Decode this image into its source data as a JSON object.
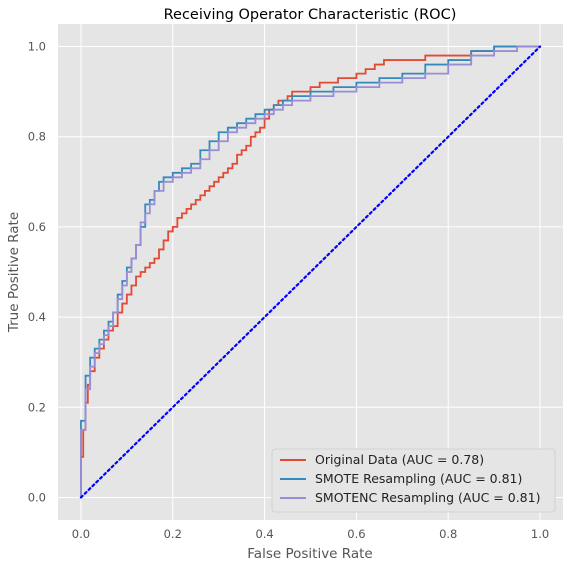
{
  "chart_data": {
    "type": "line",
    "title": "Receiving Operator Characteristic (ROC)",
    "xlabel": "False Positive Rate",
    "ylabel": "True Positive Rate",
    "xlim": [
      -0.05,
      1.05
    ],
    "ylim": [
      -0.05,
      1.05
    ],
    "xticks": [
      "0.0",
      "0.2",
      "0.4",
      "0.6",
      "0.8",
      "1.0"
    ],
    "yticks": [
      "0.0",
      "0.2",
      "0.4",
      "0.6",
      "0.8",
      "1.0"
    ],
    "grid": true,
    "legend_position": "lower-right",
    "series": [
      {
        "name": "Original Data (AUC = 0.78)",
        "color": "#E24A33",
        "x": [
          0.0,
          0.0,
          0.005,
          0.005,
          0.01,
          0.01,
          0.015,
          0.015,
          0.02,
          0.02,
          0.03,
          0.03,
          0.04,
          0.04,
          0.05,
          0.05,
          0.06,
          0.06,
          0.07,
          0.07,
          0.08,
          0.08,
          0.09,
          0.09,
          0.1,
          0.1,
          0.11,
          0.11,
          0.12,
          0.12,
          0.13,
          0.13,
          0.14,
          0.14,
          0.15,
          0.15,
          0.16,
          0.16,
          0.17,
          0.17,
          0.18,
          0.18,
          0.19,
          0.19,
          0.2,
          0.2,
          0.21,
          0.21,
          0.22,
          0.22,
          0.23,
          0.23,
          0.24,
          0.24,
          0.25,
          0.25,
          0.26,
          0.26,
          0.27,
          0.27,
          0.28,
          0.28,
          0.29,
          0.29,
          0.3,
          0.3,
          0.31,
          0.31,
          0.32,
          0.32,
          0.33,
          0.33,
          0.34,
          0.34,
          0.35,
          0.35,
          0.36,
          0.36,
          0.37,
          0.37,
          0.38,
          0.38,
          0.39,
          0.39,
          0.4,
          0.4,
          0.41,
          0.41,
          0.42,
          0.42,
          0.43,
          0.43,
          0.44,
          0.44,
          0.45,
          0.45,
          0.46,
          0.46,
          0.48,
          0.48,
          0.5,
          0.5,
          0.52,
          0.52,
          0.54,
          0.54,
          0.56,
          0.56,
          0.58,
          0.58,
          0.6,
          0.6,
          0.62,
          0.62,
          0.64,
          0.64,
          0.66,
          0.66,
          0.7,
          0.7,
          0.75,
          0.75,
          0.8,
          0.8,
          0.85,
          0.85,
          0.9,
          0.9,
          0.95,
          0.95,
          1.0
        ],
        "y": [
          0.0,
          0.09,
          0.09,
          0.15,
          0.15,
          0.21,
          0.21,
          0.25,
          0.25,
          0.28,
          0.28,
          0.31,
          0.31,
          0.33,
          0.33,
          0.35,
          0.35,
          0.37,
          0.37,
          0.38,
          0.38,
          0.41,
          0.41,
          0.43,
          0.43,
          0.45,
          0.45,
          0.47,
          0.47,
          0.49,
          0.49,
          0.5,
          0.5,
          0.51,
          0.51,
          0.52,
          0.52,
          0.53,
          0.53,
          0.55,
          0.55,
          0.57,
          0.57,
          0.59,
          0.59,
          0.6,
          0.6,
          0.62,
          0.62,
          0.63,
          0.63,
          0.64,
          0.64,
          0.65,
          0.65,
          0.66,
          0.66,
          0.67,
          0.67,
          0.68,
          0.68,
          0.69,
          0.69,
          0.7,
          0.7,
          0.71,
          0.71,
          0.72,
          0.72,
          0.73,
          0.73,
          0.74,
          0.74,
          0.76,
          0.76,
          0.77,
          0.77,
          0.78,
          0.78,
          0.8,
          0.8,
          0.81,
          0.81,
          0.82,
          0.82,
          0.84,
          0.84,
          0.86,
          0.86,
          0.87,
          0.87,
          0.88,
          0.88,
          0.88,
          0.88,
          0.89,
          0.89,
          0.9,
          0.9,
          0.9,
          0.9,
          0.91,
          0.91,
          0.92,
          0.92,
          0.92,
          0.92,
          0.93,
          0.93,
          0.93,
          0.93,
          0.94,
          0.94,
          0.95,
          0.95,
          0.96,
          0.96,
          0.97,
          0.97,
          0.97,
          0.97,
          0.98,
          0.98,
          0.98,
          0.98,
          0.99,
          0.99,
          1.0,
          1.0,
          1.0,
          1.0
        ]
      },
      {
        "name": "SMOTE Resampling (AUC = 0.81)",
        "color": "#348ABD",
        "x": [
          0.0,
          0.0,
          0.01,
          0.01,
          0.02,
          0.02,
          0.03,
          0.03,
          0.04,
          0.04,
          0.05,
          0.05,
          0.06,
          0.06,
          0.07,
          0.07,
          0.08,
          0.08,
          0.09,
          0.09,
          0.1,
          0.1,
          0.11,
          0.11,
          0.12,
          0.12,
          0.13,
          0.13,
          0.14,
          0.14,
          0.15,
          0.15,
          0.16,
          0.16,
          0.17,
          0.17,
          0.18,
          0.18,
          0.2,
          0.2,
          0.22,
          0.22,
          0.24,
          0.24,
          0.26,
          0.26,
          0.28,
          0.28,
          0.3,
          0.3,
          0.32,
          0.32,
          0.34,
          0.34,
          0.36,
          0.36,
          0.38,
          0.38,
          0.4,
          0.4,
          0.42,
          0.42,
          0.44,
          0.44,
          0.46,
          0.46,
          0.5,
          0.5,
          0.55,
          0.55,
          0.6,
          0.6,
          0.65,
          0.65,
          0.7,
          0.7,
          0.75,
          0.75,
          0.8,
          0.8,
          0.85,
          0.85,
          0.9,
          0.9,
          0.95,
          0.95,
          1.0
        ],
        "y": [
          0.0,
          0.17,
          0.17,
          0.27,
          0.27,
          0.31,
          0.31,
          0.33,
          0.33,
          0.35,
          0.35,
          0.37,
          0.37,
          0.39,
          0.39,
          0.41,
          0.41,
          0.45,
          0.45,
          0.48,
          0.48,
          0.51,
          0.51,
          0.53,
          0.53,
          0.56,
          0.56,
          0.6,
          0.6,
          0.65,
          0.65,
          0.66,
          0.66,
          0.68,
          0.68,
          0.7,
          0.7,
          0.71,
          0.71,
          0.72,
          0.72,
          0.73,
          0.73,
          0.74,
          0.74,
          0.77,
          0.77,
          0.79,
          0.79,
          0.81,
          0.81,
          0.82,
          0.82,
          0.83,
          0.83,
          0.84,
          0.84,
          0.85,
          0.85,
          0.86,
          0.86,
          0.87,
          0.87,
          0.88,
          0.88,
          0.89,
          0.89,
          0.9,
          0.9,
          0.91,
          0.91,
          0.92,
          0.92,
          0.93,
          0.93,
          0.94,
          0.94,
          0.96,
          0.96,
          0.97,
          0.97,
          0.99,
          0.99,
          1.0,
          1.0,
          1.0,
          1.0
        ]
      },
      {
        "name": "SMOTENC Resampling (AUC = 0.81)",
        "color": "#988ED5",
        "x": [
          0.0,
          0.0,
          0.01,
          0.01,
          0.02,
          0.02,
          0.03,
          0.03,
          0.04,
          0.04,
          0.05,
          0.05,
          0.06,
          0.06,
          0.07,
          0.07,
          0.08,
          0.08,
          0.09,
          0.09,
          0.1,
          0.1,
          0.11,
          0.11,
          0.12,
          0.12,
          0.13,
          0.13,
          0.14,
          0.14,
          0.15,
          0.15,
          0.16,
          0.16,
          0.18,
          0.18,
          0.2,
          0.2,
          0.22,
          0.22,
          0.24,
          0.24,
          0.26,
          0.26,
          0.28,
          0.28,
          0.3,
          0.3,
          0.32,
          0.32,
          0.34,
          0.34,
          0.36,
          0.36,
          0.38,
          0.38,
          0.4,
          0.4,
          0.42,
          0.42,
          0.44,
          0.44,
          0.46,
          0.46,
          0.5,
          0.5,
          0.55,
          0.55,
          0.6,
          0.6,
          0.65,
          0.65,
          0.7,
          0.7,
          0.75,
          0.75,
          0.8,
          0.8,
          0.85,
          0.85,
          0.9,
          0.9,
          0.95,
          0.95,
          1.0
        ],
        "y": [
          0.0,
          0.15,
          0.15,
          0.24,
          0.24,
          0.29,
          0.29,
          0.32,
          0.32,
          0.34,
          0.34,
          0.36,
          0.36,
          0.38,
          0.38,
          0.41,
          0.41,
          0.44,
          0.44,
          0.47,
          0.47,
          0.5,
          0.5,
          0.53,
          0.53,
          0.56,
          0.56,
          0.61,
          0.61,
          0.63,
          0.63,
          0.65,
          0.65,
          0.68,
          0.68,
          0.7,
          0.7,
          0.71,
          0.71,
          0.72,
          0.72,
          0.73,
          0.73,
          0.75,
          0.75,
          0.77,
          0.77,
          0.79,
          0.79,
          0.81,
          0.81,
          0.82,
          0.82,
          0.83,
          0.83,
          0.84,
          0.84,
          0.85,
          0.85,
          0.86,
          0.86,
          0.87,
          0.87,
          0.88,
          0.88,
          0.89,
          0.89,
          0.9,
          0.9,
          0.91,
          0.91,
          0.92,
          0.92,
          0.93,
          0.93,
          0.94,
          0.94,
          0.96,
          0.96,
          0.98,
          0.98,
          0.99,
          0.99,
          1.0,
          1.0
        ]
      }
    ],
    "reference_line": {
      "x": [
        0.0,
        1.0
      ],
      "y": [
        0.0,
        1.0
      ],
      "color": "#0000FF",
      "style": "dotted"
    }
  }
}
